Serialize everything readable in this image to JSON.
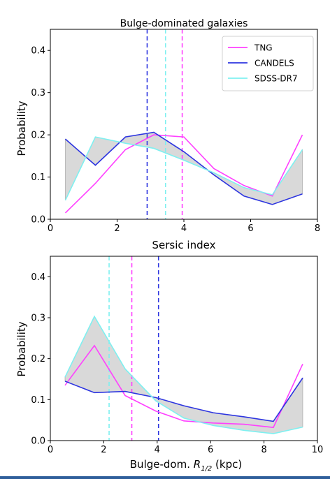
{
  "chart_data": [
    {
      "type": "line",
      "title": "Bulge-dominated galaxies",
      "xlabel": "Sersic index",
      "ylabel": "Probability",
      "xlim": [
        0,
        8
      ],
      "ylim": [
        0,
        0.45
      ],
      "xticks": [
        0,
        2,
        4,
        6,
        8
      ],
      "xtick_labels": [
        "0",
        "2",
        "4",
        "6",
        "8"
      ],
      "yticks": [
        0.0,
        0.1,
        0.2,
        0.3,
        0.4
      ],
      "ytick_labels": [
        "0.0",
        "0.1",
        "0.2",
        "0.3",
        "0.4"
      ],
      "legend": "top-right",
      "x": [
        0.45,
        1.35,
        2.25,
        3.1,
        4.0,
        4.9,
        5.8,
        6.65,
        7.55
      ],
      "series": [
        {
          "name": "TNG",
          "color": "#ff40ff",
          "values": [
            0.015,
            0.085,
            0.165,
            0.2,
            0.195,
            0.12,
            0.08,
            0.055,
            0.2
          ]
        },
        {
          "name": "CANDELS",
          "color": "#2d35e0",
          "values": [
            0.19,
            0.128,
            0.195,
            0.206,
            0.16,
            0.105,
            0.055,
            0.035,
            0.06
          ]
        },
        {
          "name": "SDSS-DR7",
          "color": "#7ff0f0",
          "values": [
            0.045,
            0.195,
            0.18,
            0.168,
            0.14,
            0.11,
            0.075,
            0.058,
            0.165
          ]
        }
      ],
      "fill_between": {
        "lower": "CANDELS",
        "upper": "SDSS-DR7",
        "color": "#d9d9d9"
      },
      "vlines": [
        {
          "x": 2.9,
          "color": "#2d35e0"
        },
        {
          "x": 3.45,
          "color": "#7ff0f0"
        },
        {
          "x": 3.95,
          "color": "#ff40ff"
        }
      ]
    },
    {
      "type": "line",
      "title": "",
      "xlabel": "Bulge-dom. R1/2 (kpc)",
      "xlabel_main": "Bulge-dom. ",
      "xlabel_symbol": "R",
      "xlabel_sub": "1/2",
      "xlabel_unit": " (kpc)",
      "ylabel": "Probability",
      "xlim": [
        0,
        10
      ],
      "ylim": [
        0,
        0.45
      ],
      "xticks": [
        0,
        2,
        4,
        6,
        8,
        10
      ],
      "xtick_labels": [
        "0",
        "2",
        "4",
        "6",
        "8",
        "10"
      ],
      "yticks": [
        0.0,
        0.1,
        0.2,
        0.3,
        0.4
      ],
      "ytick_labels": [
        "0.0",
        "0.1",
        "0.2",
        "0.3",
        "0.4"
      ],
      "x": [
        0.55,
        1.65,
        2.8,
        3.95,
        5.0,
        6.1,
        7.25,
        8.35,
        9.45
      ],
      "series": [
        {
          "name": "TNG",
          "color": "#ff40ff",
          "values": [
            0.135,
            0.232,
            0.11,
            0.072,
            0.048,
            0.043,
            0.04,
            0.032,
            0.187
          ]
        },
        {
          "name": "CANDELS",
          "color": "#2d35e0",
          "values": [
            0.145,
            0.117,
            0.12,
            0.105,
            0.085,
            0.068,
            0.058,
            0.047,
            0.153
          ]
        },
        {
          "name": "SDSS-DR7",
          "color": "#7ff0f0",
          "values": [
            0.155,
            0.303,
            0.175,
            0.097,
            0.055,
            0.037,
            0.025,
            0.017,
            0.033
          ]
        }
      ],
      "fill_between": {
        "lower": "CANDELS",
        "upper": "SDSS-DR7",
        "color": "#d9d9d9"
      },
      "vlines": [
        {
          "x": 2.2,
          "color": "#7ff0f0"
        },
        {
          "x": 3.05,
          "color": "#ff40ff"
        },
        {
          "x": 4.05,
          "color": "#2d35e0"
        }
      ]
    }
  ]
}
